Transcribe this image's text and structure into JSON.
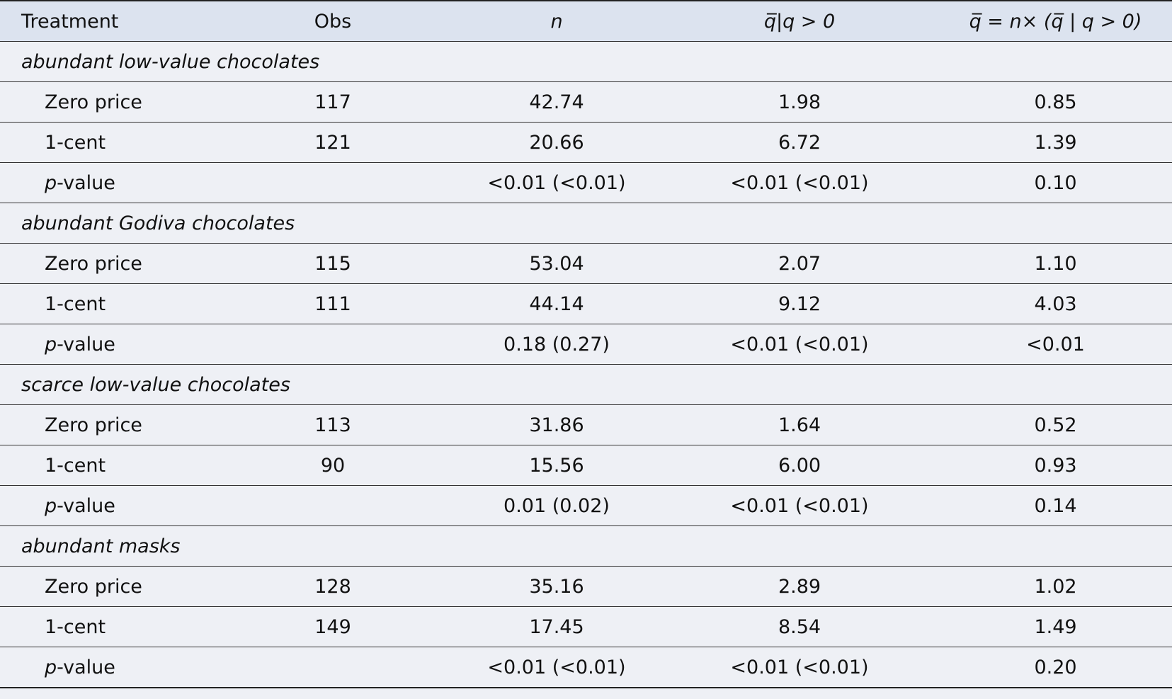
{
  "table": {
    "header": [
      "Treatment",
      "Obs",
      "n",
      "q̅|q > 0",
      "q̅ = n× (q̅ | q > 0)"
    ],
    "sections": [
      {
        "title": "abundant low-value chocolates",
        "rows": [
          [
            "Zero price",
            "117",
            "42.74",
            "1.98",
            "0.85"
          ],
          [
            "1-cent",
            "121",
            "20.66",
            "6.72",
            "1.39"
          ],
          [
            "p-value",
            null,
            "<0.01 (<0.01)",
            "<0.01 (<0.01)",
            "0.10"
          ]
        ]
      },
      {
        "title": "abundant Godiva chocolates",
        "rows": [
          [
            "Zero price",
            "115",
            "53.04",
            "2.07",
            "1.10"
          ],
          [
            "1-cent",
            "111",
            "44.14",
            "9.12",
            "4.03"
          ],
          [
            "p-value",
            null,
            "0.18 (0.27)",
            "<0.01 (<0.01)",
            "<0.01"
          ]
        ]
      },
      {
        "title": "scarce low-value chocolates",
        "rows": [
          [
            "Zero price",
            "113",
            "31.86",
            "1.64",
            "0.52"
          ],
          [
            "1-cent",
            "90",
            "15.56",
            "6.00",
            "0.93"
          ],
          [
            "p-value",
            null,
            "0.01 (0.02)",
            "<0.01 (<0.01)",
            "0.14"
          ]
        ]
      },
      {
        "title": "abundant masks",
        "rows": [
          [
            "Zero price",
            "128",
            "35.16",
            "2.89",
            "1.02"
          ],
          [
            "1-cent",
            "149",
            "17.45",
            "8.54",
            "1.49"
          ],
          [
            "p-value",
            null,
            "<0.01 (<0.01)",
            "<0.01 (<0.01)",
            "0.20"
          ]
        ]
      }
    ]
  }
}
